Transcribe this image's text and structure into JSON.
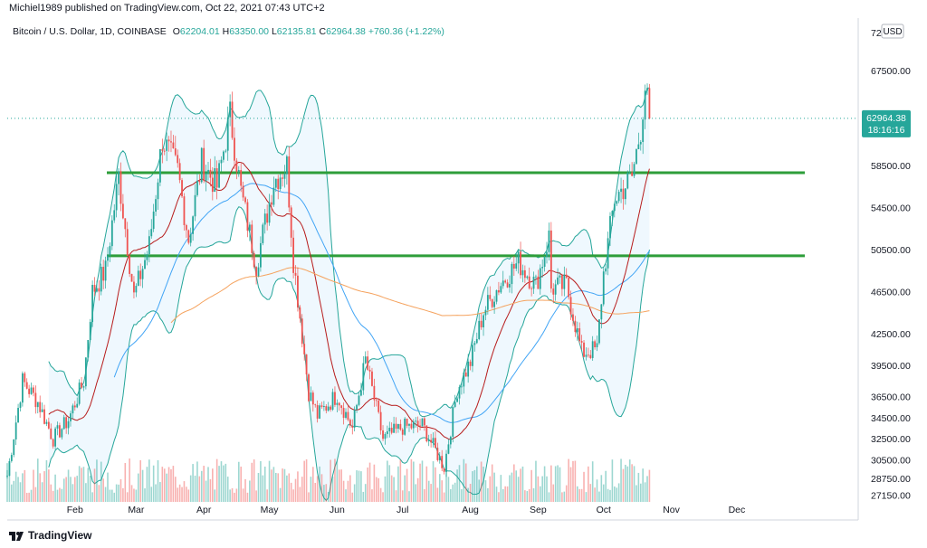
{
  "header": {
    "publisher": "Michiel1989 published on TradingView.com, Oct 22, 2021 07:43 UTC+2"
  },
  "legend": {
    "symbol": "Bitcoin / U.S. Dollar, 1D, COINBASE",
    "open_label": "O",
    "open": "62204.01",
    "high_label": "H",
    "high": "63350.00",
    "low_label": "L",
    "low": "62135.81",
    "close_label": "C",
    "close": "62964.38",
    "change": "+760.36 (+1.22%)"
  },
  "price_scale": {
    "currency": "USD",
    "ticks": [
      "72",
      "67500.00",
      "58500.00",
      "54500.00",
      "50500.00",
      "46500.00",
      "42500.00",
      "39500.00",
      "36500.00",
      "34500.00",
      "32500.00",
      "30500.00",
      "28750.00",
      "27150.00"
    ],
    "last_price": "62964.38",
    "countdown": "18:16:16"
  },
  "footer": {
    "brand": "TradingView"
  },
  "colors": {
    "up": "#26a69a",
    "down": "#ef5350",
    "bollinger": "#26a69a",
    "ma_blue": "#42a5f5",
    "ma_red": "#b71c1c",
    "ma_orange": "#f5a25d",
    "support_lines": "#2e9e3a"
  },
  "chart_data": {
    "type": "candlestick",
    "title": "Bitcoin / U.S. Dollar, 1D, COINBASE",
    "x_ticks": [
      "Feb",
      "Mar",
      "Apr",
      "May",
      "Jun",
      "Jul",
      "Aug",
      "Sep",
      "Oct",
      "Nov",
      "Dec"
    ],
    "y_range": [
      26500,
      72500
    ],
    "horizontal_levels": [
      57800,
      49900
    ],
    "price_series_close_approx": [
      {
        "date": "Jan 01",
        "close": 29000
      },
      {
        "date": "Jan 08",
        "close": 38000
      },
      {
        "date": "Jan 15",
        "close": 36000
      },
      {
        "date": "Jan 22",
        "close": 32500
      },
      {
        "date": "Jan 29",
        "close": 34300
      },
      {
        "date": "Feb 05",
        "close": 38000
      },
      {
        "date": "Feb 09",
        "close": 46500
      },
      {
        "date": "Feb 15",
        "close": 48500
      },
      {
        "date": "Feb 21",
        "close": 57500
      },
      {
        "date": "Feb 28",
        "close": 46000
      },
      {
        "date": "Mar 07",
        "close": 50900
      },
      {
        "date": "Mar 13",
        "close": 61000
      },
      {
        "date": "Mar 20",
        "close": 58000
      },
      {
        "date": "Mar 25",
        "close": 51500
      },
      {
        "date": "Mar 31",
        "close": 58800
      },
      {
        "date": "Apr 07",
        "close": 56500
      },
      {
        "date": "Apr 13",
        "close": 63300
      },
      {
        "date": "Apr 18",
        "close": 56000
      },
      {
        "date": "Apr 25",
        "close": 49000
      },
      {
        "date": "May 03",
        "close": 57000
      },
      {
        "date": "May 09",
        "close": 58500
      },
      {
        "date": "May 12",
        "close": 49500
      },
      {
        "date": "May 19",
        "close": 37000
      },
      {
        "date": "May 23",
        "close": 34700
      },
      {
        "date": "Jun 01",
        "close": 36700
      },
      {
        "date": "Jun 08",
        "close": 33500
      },
      {
        "date": "Jun 14",
        "close": 40000
      },
      {
        "date": "Jun 22",
        "close": 32500
      },
      {
        "date": "Jul 01",
        "close": 33600
      },
      {
        "date": "Jul 10",
        "close": 33800
      },
      {
        "date": "Jul 20",
        "close": 29800
      },
      {
        "date": "Jul 26",
        "close": 37200
      },
      {
        "date": "Aug 01",
        "close": 39800
      },
      {
        "date": "Aug 07",
        "close": 44600
      },
      {
        "date": "Aug 14",
        "close": 47000
      },
      {
        "date": "Aug 23",
        "close": 49300
      },
      {
        "date": "Aug 31",
        "close": 47100
      },
      {
        "date": "Sep 06",
        "close": 51700
      },
      {
        "date": "Sep 07",
        "close": 46800
      },
      {
        "date": "Sep 14",
        "close": 47100
      },
      {
        "date": "Sep 21",
        "close": 40700
      },
      {
        "date": "Sep 28",
        "close": 41000
      },
      {
        "date": "Oct 01",
        "close": 48200
      },
      {
        "date": "Oct 06",
        "close": 55300
      },
      {
        "date": "Oct 14",
        "close": 57400
      },
      {
        "date": "Oct 18",
        "close": 62000
      },
      {
        "date": "Oct 20",
        "close": 66000
      },
      {
        "date": "Oct 22",
        "close": 62964
      }
    ]
  }
}
